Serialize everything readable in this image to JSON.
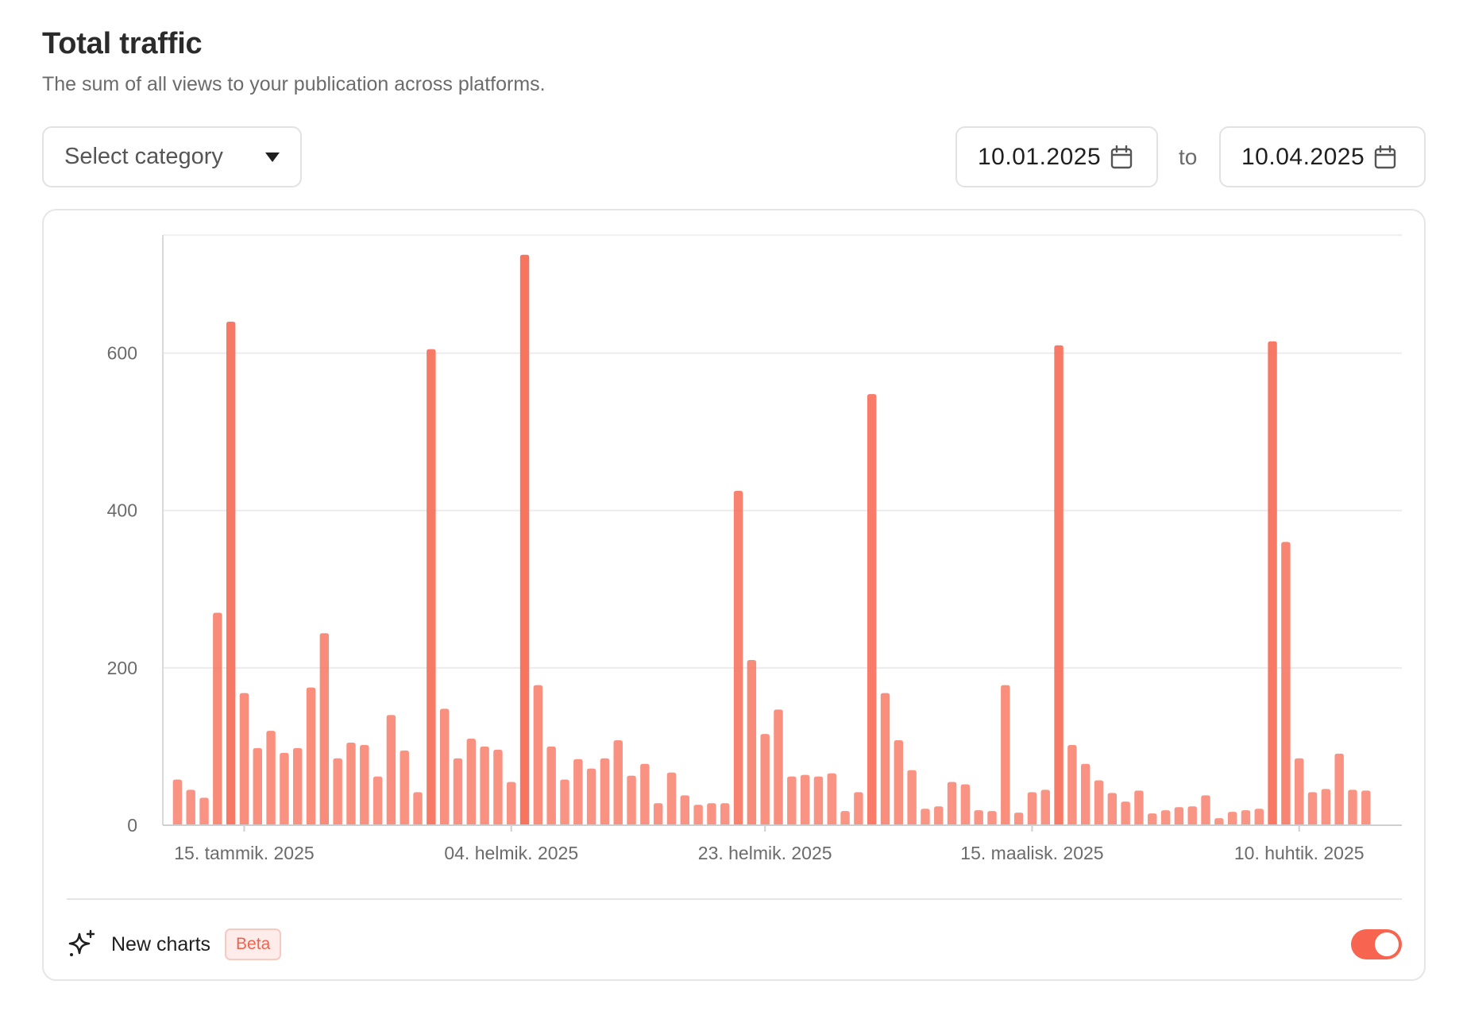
{
  "header": {
    "title": "Total traffic",
    "subtitle": "The sum of all views to your publication across platforms."
  },
  "filters": {
    "category_placeholder": "Select category",
    "date_from": "10.01.2025",
    "to_label": "to",
    "date_to": "10.04.2025"
  },
  "footer": {
    "new_charts_label": "New charts",
    "beta_badge": "Beta",
    "toggle_on": true
  },
  "colors": {
    "bar": "#f7735e",
    "accent": "#f7644f"
  },
  "chart_data": {
    "type": "bar",
    "ylim": [
      0,
      750
    ],
    "y_ticks": [
      0,
      200,
      400,
      600
    ],
    "x_tick_labels": [
      "15. tammik. 2025",
      "04. helmik. 2025",
      "23. helmik. 2025",
      "15. maalisk. 2025",
      "10. huhtik. 2025"
    ],
    "x_tick_index": [
      5,
      25,
      44,
      64,
      84
    ],
    "grid": true,
    "series": [
      {
        "values": [
          58,
          45,
          35,
          270,
          640,
          168,
          98,
          120,
          92,
          98,
          175,
          244,
          85,
          105,
          102,
          62,
          140,
          95,
          42,
          605,
          148,
          85,
          110,
          100,
          96,
          55,
          725,
          178,
          100,
          58,
          84,
          72,
          85,
          108,
          63,
          78,
          28,
          67,
          38,
          26,
          28,
          28,
          425,
          210,
          116,
          147,
          62,
          64,
          62,
          66,
          18,
          42,
          548,
          168,
          108,
          70,
          21,
          24,
          55,
          52,
          19,
          18,
          178,
          16,
          42,
          45,
          610,
          102,
          78,
          57,
          41,
          30,
          44,
          15,
          19,
          23,
          24,
          38,
          9,
          17,
          19,
          21,
          615,
          360,
          85,
          42,
          46,
          91,
          45,
          44,
          1
        ]
      }
    ]
  }
}
